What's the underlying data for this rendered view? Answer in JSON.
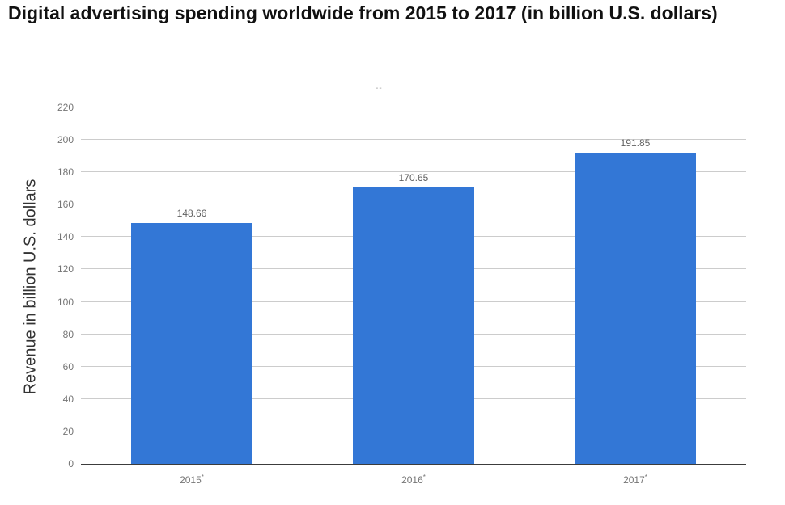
{
  "chart_data": {
    "type": "bar",
    "title": "Digital advertising spending worldwide from 2015 to 2017 (in billion U.S. dollars)",
    "note": "--",
    "categories": [
      "2015",
      "2016",
      "2017"
    ],
    "category_footnote_marker": "*",
    "values": [
      148.66,
      170.65,
      191.85
    ],
    "value_labels": [
      "148.66",
      "170.65",
      "191.85"
    ],
    "xlabel": "",
    "ylabel": "Revenue in billion U.S. dollars",
    "ylim": [
      0,
      220
    ],
    "ytick_step": 20,
    "ytick_labels": [
      "0",
      "20",
      "40",
      "60",
      "80",
      "100",
      "120",
      "140",
      "160",
      "180",
      "200",
      "220"
    ],
    "grid": true,
    "legend": "none",
    "bar_color": "#3377d6",
    "axis_line_color": "#3c3c3c",
    "gridline_color": "#cccccc"
  }
}
